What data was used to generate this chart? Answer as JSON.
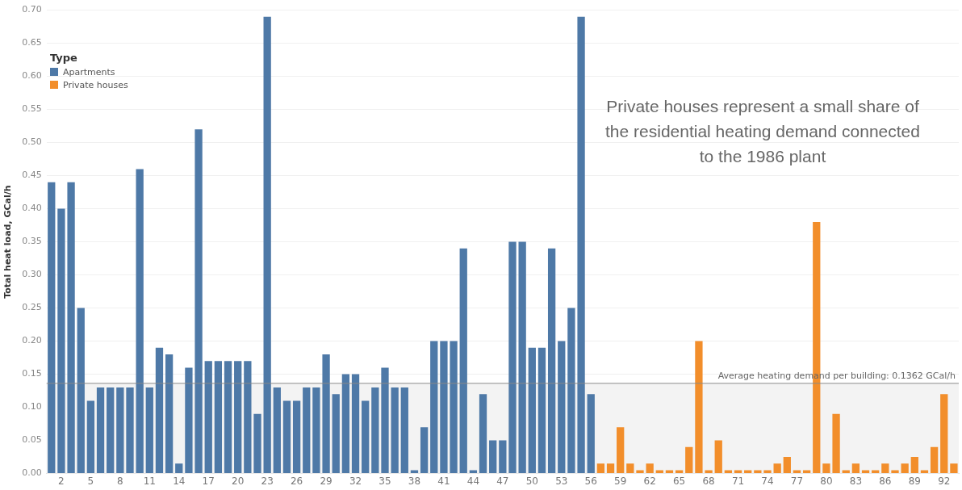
{
  "chart_data": {
    "type": "bar",
    "ylabel": "Total heat load, GCal/h",
    "legend_title": "Type",
    "legend": "top left",
    "grid": "y",
    "stacked": true,
    "categories": [
      null,
      "2",
      null,
      null,
      "5",
      null,
      null,
      "8",
      null,
      null,
      "11",
      null,
      null,
      "14",
      null,
      null,
      "17",
      null,
      null,
      "20",
      null,
      null,
      "23",
      null,
      null,
      "26",
      null,
      null,
      "29",
      null,
      null,
      "32",
      null,
      null,
      "35",
      null,
      null,
      "38",
      null,
      null,
      "41",
      null,
      null,
      "44",
      null,
      null,
      "47",
      null,
      null,
      "50",
      null,
      null,
      "53",
      null,
      null,
      "56",
      null,
      null,
      "59",
      null,
      null,
      "62",
      null,
      null,
      "65",
      null,
      null,
      "68",
      null,
      null,
      "71",
      null,
      null,
      "74",
      null,
      null,
      "77",
      null,
      null,
      "80",
      null,
      null,
      "83",
      null,
      null,
      "86",
      null,
      null,
      "89",
      null,
      null,
      "92",
      null
    ],
    "series": [
      {
        "name": "Apartments",
        "color": "#4e79a7",
        "values": [
          0.44,
          0.4,
          0.44,
          0.25,
          0.11,
          0.13,
          0.13,
          0.13,
          0.13,
          0.46,
          0.13,
          0.19,
          0.18,
          0.015,
          0.16,
          0.52,
          0.17,
          0.17,
          0.17,
          0.17,
          0.17,
          0.09,
          0.69,
          0.13,
          0.11,
          0.11,
          0.13,
          0.13,
          0.18,
          0.12,
          0.15,
          0.15,
          0.11,
          0.13,
          0.16,
          0.13,
          0.13,
          0.005,
          0.07,
          0.2,
          0.2,
          0.2,
          0.34,
          0.005,
          0.12,
          0.05,
          0.05,
          0.35,
          0.35,
          0.19,
          0.19,
          0.34,
          0.2,
          0.25,
          0.69,
          0.12,
          null,
          null,
          null,
          null,
          null,
          null,
          null,
          null,
          null,
          null,
          null,
          null,
          null,
          null,
          null,
          null,
          null,
          null,
          null,
          null,
          null,
          null,
          null,
          null,
          null,
          null,
          null,
          null,
          null,
          null,
          null,
          null,
          null,
          null,
          null,
          null,
          null
        ]
      },
      {
        "name": "Private houses",
        "color": "#f28e2b",
        "values": [
          null,
          null,
          null,
          null,
          null,
          null,
          null,
          null,
          null,
          null,
          null,
          null,
          null,
          null,
          null,
          null,
          null,
          null,
          null,
          null,
          null,
          null,
          null,
          null,
          null,
          null,
          null,
          null,
          null,
          null,
          null,
          null,
          null,
          null,
          null,
          null,
          null,
          null,
          null,
          null,
          null,
          null,
          null,
          null,
          null,
          null,
          null,
          null,
          null,
          null,
          null,
          null,
          null,
          null,
          null,
          null,
          0.015,
          0.015,
          0.07,
          0.015,
          0.005,
          0.015,
          0.005,
          0.005,
          0.005,
          0.04,
          0.2,
          0.005,
          0.05,
          0.005,
          0.005,
          0.005,
          0.005,
          0.005,
          0.015,
          0.025,
          0.005,
          0.005,
          0.38,
          0.015,
          0.09,
          0.005,
          0.015,
          0.005,
          0.005,
          0.015,
          0.005,
          0.015,
          0.025,
          0.005,
          0.04,
          0.12,
          0.015
        ]
      }
    ],
    "ylim": [
      0,
      0.7
    ],
    "yticks": [
      {
        "value": 0,
        "label": "0.00"
      },
      {
        "value": 0.05,
        "label": "0.05"
      },
      {
        "value": 0.1,
        "label": "0.10"
      },
      {
        "value": 0.15,
        "label": "0.15"
      },
      {
        "value": 0.2,
        "label": "0.20"
      },
      {
        "value": 0.25,
        "label": "0.25"
      },
      {
        "value": 0.3,
        "label": "0.30"
      },
      {
        "value": 0.35,
        "label": "0.35"
      },
      {
        "value": 0.4,
        "label": "0.40"
      },
      {
        "value": 0.45,
        "label": "0.45"
      },
      {
        "value": 0.5,
        "label": "0.50"
      },
      {
        "value": 0.55,
        "label": "0.55"
      },
      {
        "value": 0.6,
        "label": "0.60"
      },
      {
        "value": 0.65,
        "label": "0.65"
      },
      {
        "value": 0.7,
        "label": "0.70"
      }
    ],
    "bands": [
      {
        "axis": "y",
        "from": 0,
        "to": 0.1362,
        "color": "#f3f3f3"
      }
    ],
    "ref_lines": [
      {
        "axis": "y",
        "value": 0.1362,
        "label": "Average heating demand per building: 0.1362 GCal/h",
        "color": "#8a8a8a"
      }
    ],
    "annotations": [
      "Private houses represent a small share of the residential heating demand connected to the 1986 plant"
    ]
  }
}
